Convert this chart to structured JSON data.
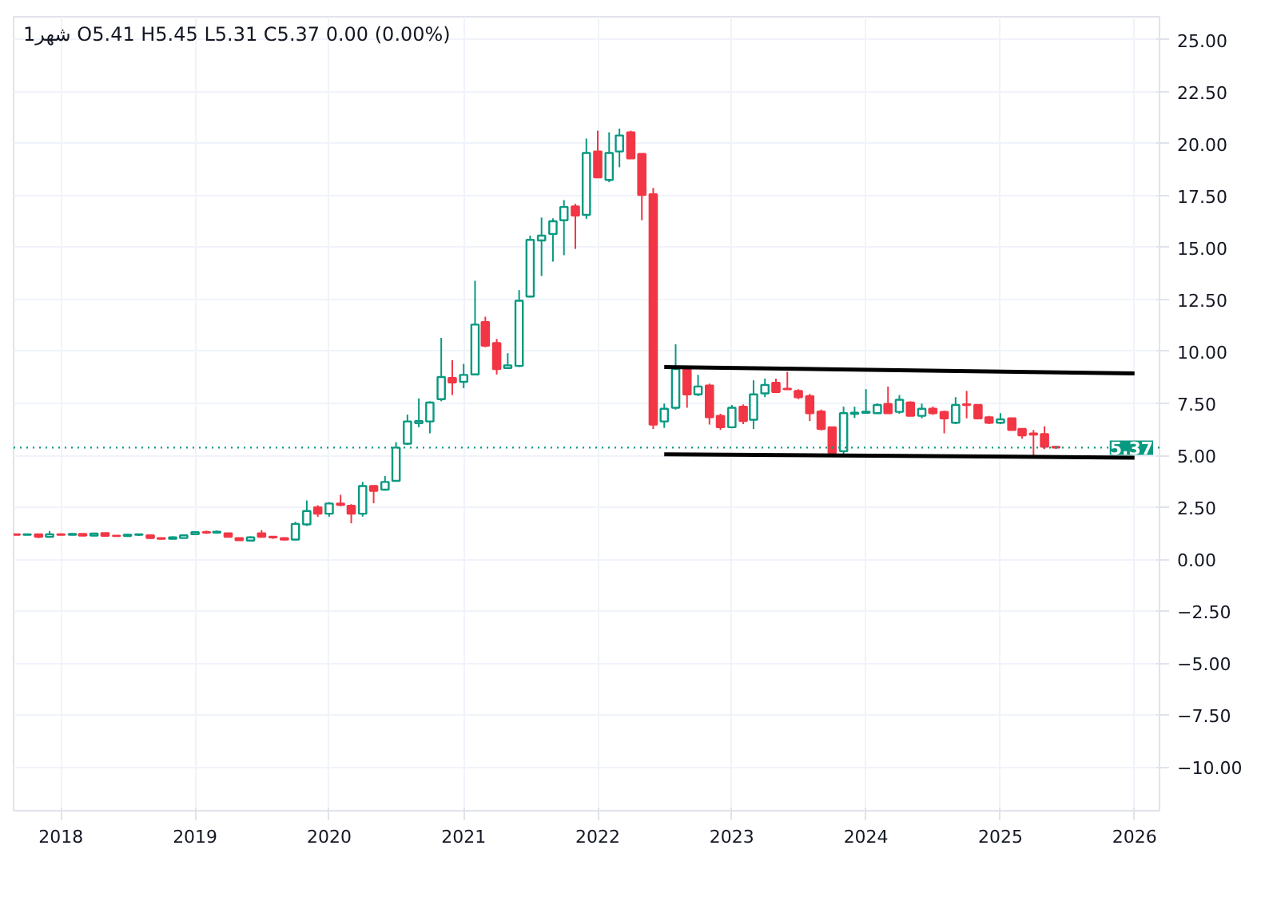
{
  "chart_data": {
    "type": "candlestick",
    "annotations": [
      "1شهر O5.41 H5.45 L5.31 C5.37 0.00 (0.00%)"
    ],
    "x": [
      "2017-09",
      "2017-10",
      "2017-11",
      "2017-12",
      "2018-01",
      "2018-02",
      "2018-03",
      "2018-04",
      "2018-05",
      "2018-06",
      "2018-07",
      "2018-08",
      "2018-09",
      "2018-10",
      "2018-11",
      "2018-12",
      "2019-01",
      "2019-02",
      "2019-03",
      "2019-04",
      "2019-05",
      "2019-06",
      "2019-07",
      "2019-08",
      "2019-09",
      "2019-10",
      "2019-11",
      "2019-12",
      "2020-01",
      "2020-02",
      "2020-03",
      "2020-04",
      "2020-05",
      "2020-06",
      "2020-07",
      "2020-08",
      "2020-09",
      "2020-10",
      "2020-11",
      "2020-12",
      "2021-01",
      "2021-02",
      "2021-03",
      "2021-04",
      "2021-05",
      "2021-06",
      "2021-07",
      "2021-08",
      "2021-09",
      "2021-10",
      "2021-11",
      "2021-12",
      "2022-01",
      "2022-02",
      "2022-03",
      "2022-04",
      "2022-05",
      "2022-06",
      "2022-07",
      "2022-08",
      "2022-09",
      "2022-10",
      "2022-11",
      "2022-12",
      "2023-01",
      "2023-02",
      "2023-03",
      "2023-04",
      "2023-05",
      "2023-06",
      "2023-07",
      "2023-08",
      "2023-09",
      "2023-10",
      "2023-11",
      "2023-12",
      "2024-01",
      "2024-02",
      "2024-03",
      "2024-04",
      "2024-05",
      "2024-06",
      "2024-07",
      "2024-08",
      "2024-09",
      "2024-10",
      "2024-11",
      "2024-12",
      "2025-01",
      "2025-02",
      "2025-03",
      "2025-04",
      "2025-05",
      "2025-06"
    ],
    "ohlc": [
      [
        1.2,
        1.22,
        1.18,
        1.18
      ],
      [
        1.18,
        1.22,
        1.15,
        1.2
      ],
      [
        1.2,
        1.22,
        1.02,
        1.08
      ],
      [
        1.08,
        1.35,
        1.05,
        1.2
      ],
      [
        1.2,
        1.25,
        1.15,
        1.18
      ],
      [
        1.18,
        1.25,
        1.15,
        1.22
      ],
      [
        1.22,
        1.22,
        1.12,
        1.14
      ],
      [
        1.14,
        1.26,
        1.14,
        1.24
      ],
      [
        1.26,
        1.26,
        1.12,
        1.13
      ],
      [
        1.13,
        1.15,
        1.1,
        1.12
      ],
      [
        1.12,
        1.22,
        1.1,
        1.18
      ],
      [
        1.18,
        1.22,
        1.12,
        1.2
      ],
      [
        1.15,
        1.15,
        0.98,
        1.02
      ],
      [
        1.02,
        1.05,
        0.95,
        0.98
      ],
      [
        0.98,
        1.1,
        0.96,
        1.05
      ],
      [
        1.02,
        1.2,
        1.0,
        1.15
      ],
      [
        1.2,
        1.35,
        1.18,
        1.3
      ],
      [
        1.3,
        1.38,
        1.22,
        1.28
      ],
      [
        1.28,
        1.38,
        1.25,
        1.32
      ],
      [
        1.25,
        1.25,
        1.05,
        1.08
      ],
      [
        1.02,
        1.02,
        0.9,
        0.92
      ],
      [
        0.9,
        1.1,
        0.88,
        1.05
      ],
      [
        1.25,
        1.4,
        1.05,
        1.08
      ],
      [
        1.08,
        1.12,
        0.98,
        1.05
      ],
      [
        1.02,
        1.05,
        0.92,
        0.95
      ],
      [
        0.95,
        1.8,
        0.92,
        1.7
      ],
      [
        1.68,
        2.83,
        1.6,
        2.32
      ],
      [
        2.5,
        2.6,
        2.04,
        2.19
      ],
      [
        2.19,
        2.75,
        2.05,
        2.68
      ],
      [
        2.68,
        3.1,
        2.55,
        2.62
      ],
      [
        2.57,
        2.65,
        1.73,
        2.19
      ],
      [
        2.19,
        3.72,
        2.05,
        3.52
      ],
      [
        3.52,
        3.55,
        2.7,
        3.29
      ],
      [
        3.35,
        4.0,
        3.3,
        3.72
      ],
      [
        3.77,
        5.63,
        3.75,
        5.37
      ],
      [
        5.56,
        6.96,
        5.5,
        6.63
      ],
      [
        6.55,
        7.74,
        6.35,
        6.65
      ],
      [
        6.63,
        7.6,
        6.06,
        7.54
      ],
      [
        7.7,
        10.65,
        7.6,
        8.77
      ],
      [
        8.72,
        9.58,
        7.9,
        8.51
      ],
      [
        8.54,
        9.4,
        8.23,
        8.87
      ],
      [
        8.89,
        13.4,
        8.85,
        11.29
      ],
      [
        11.41,
        11.67,
        10.2,
        10.27
      ],
      [
        10.4,
        10.6,
        8.89,
        9.15
      ],
      [
        9.2,
        9.91,
        9.15,
        9.33
      ],
      [
        9.3,
        12.95,
        9.25,
        12.44
      ],
      [
        12.64,
        15.57,
        12.6,
        15.37
      ],
      [
        15.34,
        16.44,
        13.63,
        15.57
      ],
      [
        15.65,
        16.4,
        14.32,
        16.26
      ],
      [
        16.31,
        17.28,
        14.63,
        16.95
      ],
      [
        16.97,
        17.1,
        14.93,
        16.54
      ],
      [
        16.57,
        20.24,
        16.38,
        19.55
      ],
      [
        19.62,
        20.62,
        18.37,
        18.37
      ],
      [
        18.25,
        20.54,
        18.14,
        19.55
      ],
      [
        19.62,
        20.72,
        18.86,
        20.39
      ],
      [
        20.54,
        20.62,
        19.29,
        19.29
      ],
      [
        19.5,
        19.5,
        16.31,
        17.53
      ],
      [
        17.56,
        17.87,
        6.27,
        6.48
      ],
      [
        6.63,
        7.49,
        6.32,
        7.24
      ],
      [
        7.29,
        10.34,
        7.2,
        9.15
      ],
      [
        9.2,
        9.3,
        7.29,
        7.93
      ],
      [
        7.93,
        8.87,
        7.85,
        8.31
      ],
      [
        8.36,
        8.45,
        6.48,
        6.83
      ],
      [
        6.9,
        7.0,
        6.22,
        6.35
      ],
      [
        6.35,
        7.42,
        6.3,
        7.29
      ],
      [
        7.34,
        7.45,
        6.5,
        6.65
      ],
      [
        6.71,
        8.61,
        6.27,
        7.93
      ],
      [
        7.98,
        8.69,
        7.8,
        8.39
      ],
      [
        8.49,
        8.69,
        8.0,
        8.05
      ],
      [
        8.2,
        9.02,
        8.15,
        8.18
      ],
      [
        8.1,
        8.18,
        7.7,
        7.8
      ],
      [
        7.85,
        7.95,
        6.65,
        7.03
      ],
      [
        7.11,
        7.2,
        6.2,
        6.27
      ],
      [
        6.35,
        6.35,
        5.1,
        5.12
      ],
      [
        5.2,
        7.34,
        5.05,
        7.03
      ],
      [
        7.0,
        7.34,
        6.8,
        7.05
      ],
      [
        7.05,
        8.18,
        7.0,
        7.1
      ],
      [
        7.03,
        7.5,
        7.0,
        7.42
      ],
      [
        7.47,
        8.31,
        7.0,
        7.03
      ],
      [
        7.09,
        7.9,
        7.0,
        7.67
      ],
      [
        7.54,
        7.6,
        6.9,
        6.9
      ],
      [
        6.9,
        7.49,
        6.78,
        7.24
      ],
      [
        7.24,
        7.35,
        6.95,
        7.03
      ],
      [
        7.09,
        7.15,
        6.06,
        6.78
      ],
      [
        6.57,
        7.8,
        6.5,
        7.42
      ],
      [
        7.45,
        8.1,
        6.78,
        7.42
      ],
      [
        7.42,
        7.42,
        6.78,
        6.78
      ],
      [
        6.83,
        6.9,
        6.5,
        6.57
      ],
      [
        6.57,
        7.03,
        6.5,
        6.73
      ],
      [
        6.78,
        6.8,
        6.2,
        6.22
      ],
      [
        6.27,
        6.3,
        5.8,
        5.96
      ],
      [
        6.05,
        6.22,
        4.99,
        6.0
      ],
      [
        6.02,
        6.4,
        5.3,
        5.41
      ],
      [
        5.41,
        5.45,
        5.31,
        5.37
      ]
    ],
    "colors": [
      "#f23645",
      "#089981",
      "#f23645",
      "#089981",
      "#f23645",
      "#089981",
      "#f23645",
      "#089981",
      "#f23645",
      "#f23645",
      "#089981",
      "#089981",
      "#f23645",
      "#f23645",
      "#089981",
      "#089981",
      "#089981",
      "#f23645",
      "#089981",
      "#f23645",
      "#f23645",
      "#089981",
      "#f23645",
      "#f23645",
      "#f23645",
      "#089981",
      "#089981",
      "#f23645",
      "#089981",
      "#f23645",
      "#f23645",
      "#089981",
      "#f23645",
      "#089981",
      "#089981",
      "#089981",
      "#089981",
      "#089981",
      "#089981",
      "#f23645",
      "#089981",
      "#089981",
      "#f23645",
      "#f23645",
      "#089981",
      "#089981",
      "#089981",
      "#089981",
      "#089981",
      "#089981",
      "#f23645",
      "#089981",
      "#f23645",
      "#089981",
      "#089981",
      "#f23645",
      "#f23645",
      "#f23645",
      "#089981",
      "#089981",
      "#f23645",
      "#089981",
      "#f23645",
      "#f23645",
      "#089981",
      "#f23645",
      "#089981",
      "#089981",
      "#f23645",
      "#f23645",
      "#f23645",
      "#f23645",
      "#f23645",
      "#f23645",
      "#089981",
      "#089981",
      "#089981",
      "#089981",
      "#f23645",
      "#089981",
      "#f23645",
      "#089981",
      "#f23645",
      "#f23645",
      "#089981",
      "#f23645",
      "#f23645",
      "#f23645",
      "#089981",
      "#f23645",
      "#f23645",
      "#f23645",
      "#f23645",
      "#f23645"
    ],
    "series": [
      {
        "type": "line",
        "color": "#000000",
        "x": [
          "2022-07",
          "2026-01"
        ],
        "values": [
          9.25,
          8.94
        ]
      },
      {
        "type": "line",
        "color": "#000000",
        "x": [
          "2022-07",
          "2026-01"
        ],
        "values": [
          5.05,
          4.89
        ]
      }
    ],
    "xlim": [
      "2017-08-25",
      "2026-03-10"
    ],
    "xticks": [
      {
        "value": "2018",
        "label": "2018"
      },
      {
        "value": "2019",
        "label": "2019"
      },
      {
        "value": "2020",
        "label": "2020"
      },
      {
        "value": "2021",
        "label": "2021"
      },
      {
        "value": "2022",
        "label": "2022"
      },
      {
        "value": "2023",
        "label": "2023"
      },
      {
        "value": "2024",
        "label": "2024"
      },
      {
        "value": "2025",
        "label": "2025"
      },
      {
        "value": "2026",
        "label": "2026"
      }
    ],
    "ylim": [
      -12.1,
      26.1
    ],
    "yticks": [
      {
        "value": -10,
        "label": "−10.00"
      },
      {
        "value": -7.5,
        "label": "−7.50"
      },
      {
        "value": -5,
        "label": "−5.00"
      },
      {
        "value": -2.5,
        "label": "−2.50"
      },
      {
        "value": 0,
        "label": "0.00"
      },
      {
        "value": 2.5,
        "label": "2.50"
      },
      {
        "value": 5,
        "label": "5.00"
      },
      {
        "value": 7.5,
        "label": "7.50"
      },
      {
        "value": 10,
        "label": "10.00"
      },
      {
        "value": 12.5,
        "label": "12.50"
      },
      {
        "value": 15,
        "label": "15.00"
      },
      {
        "value": 17.5,
        "label": "17.50"
      },
      {
        "value": 20,
        "label": "20.00"
      },
      {
        "value": 22.5,
        "label": "22.50"
      },
      {
        "value": 25,
        "label": "25.00"
      }
    ],
    "ref_lines": [
      {
        "axis": "y",
        "value": 5.37,
        "label": "5.37",
        "color": "#089981",
        "line_style": "dotted"
      }
    ],
    "grid": true
  }
}
